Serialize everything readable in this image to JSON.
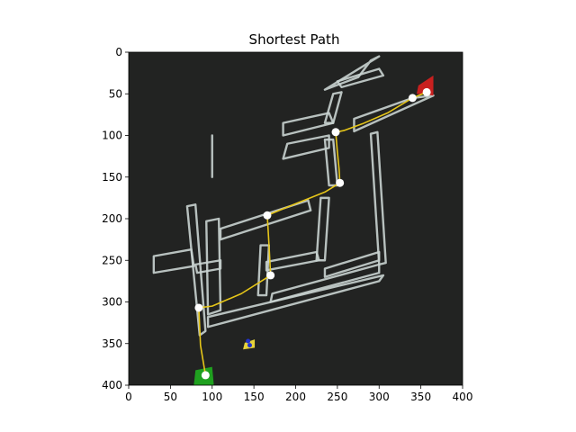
{
  "chart_data": {
    "type": "scatter",
    "title": "Shortest Path",
    "xlabel": "",
    "ylabel": "",
    "xlim": [
      0,
      400
    ],
    "ylim": [
      400,
      0
    ],
    "y_inverted": true,
    "grid": false,
    "x_ticks": [
      0,
      50,
      100,
      150,
      200,
      250,
      300,
      350,
      400
    ],
    "y_ticks": [
      0,
      50,
      100,
      150,
      200,
      250,
      300,
      350,
      400
    ],
    "background_color": "#222322",
    "corridor_color": "#c9d3d0",
    "path_color": "#e6c619",
    "waypoint_color": "#ffffff",
    "start_color": "#1fa01f",
    "goal_color": "#c8201f",
    "corridors": [
      [
        [
          85,
          340
        ],
        [
          70,
          185
        ],
        [
          80,
          183
        ],
        [
          92,
          335
        ]
      ],
      [
        [
          30,
          265
        ],
        [
          30,
          245
        ],
        [
          75,
          237
        ],
        [
          78,
          257
        ]
      ],
      [
        [
          80,
          255
        ],
        [
          110,
          250
        ],
        [
          110,
          260
        ],
        [
          82,
          265
        ]
      ],
      [
        [
          95,
          330
        ],
        [
          300,
          275
        ],
        [
          305,
          268
        ],
        [
          95,
          318
        ]
      ],
      [
        [
          95,
          315
        ],
        [
          110,
          310
        ],
        [
          108,
          200
        ],
        [
          93,
          203
        ]
      ],
      [
        [
          110,
          225
        ],
        [
          110,
          212
        ],
        [
          215,
          178
        ],
        [
          218,
          190
        ]
      ],
      [
        [
          155,
          292
        ],
        [
          158,
          232
        ],
        [
          168,
          232
        ],
        [
          165,
          292
        ]
      ],
      [
        [
          165,
          262
        ],
        [
          165,
          252
        ],
        [
          225,
          240
        ],
        [
          228,
          250
        ]
      ],
      [
        [
          225,
          250
        ],
        [
          230,
          175
        ],
        [
          240,
          175
        ],
        [
          235,
          250
        ]
      ],
      [
        [
          170,
          300
        ],
        [
          300,
          265
        ],
        [
          300,
          255
        ],
        [
          172,
          290
        ]
      ],
      [
        [
          235,
          270
        ],
        [
          300,
          250
        ],
        [
          300,
          240
        ],
        [
          235,
          260
        ]
      ],
      [
        [
          300,
          255
        ],
        [
          290,
          98
        ],
        [
          298,
          96
        ],
        [
          308,
          253
        ]
      ],
      [
        [
          185,
          100
        ],
        [
          185,
          85
        ],
        [
          240,
          73
        ],
        [
          245,
          85
        ]
      ],
      [
        [
          235,
          85
        ],
        [
          245,
          50
        ],
        [
          255,
          48
        ],
        [
          245,
          85
        ]
      ],
      [
        [
          185,
          128
        ],
        [
          190,
          110
        ],
        [
          240,
          100
        ],
        [
          240,
          115
        ]
      ],
      [
        [
          240,
          160
        ],
        [
          235,
          105
        ],
        [
          245,
          105
        ],
        [
          250,
          160
        ]
      ],
      [
        [
          250,
          35
        ],
        [
          300,
          20
        ],
        [
          305,
          28
        ],
        [
          255,
          42
        ]
      ],
      [
        [
          235,
          45
        ],
        [
          275,
          30
        ],
        [
          290,
          10
        ],
        [
          300,
          5
        ]
      ],
      [
        [
          270,
          95
        ],
        [
          270,
          80
        ],
        [
          340,
          55
        ],
        [
          365,
          52
        ]
      ],
      [
        [
          100,
          150
        ],
        [
          100,
          100
        ]
      ]
    ],
    "path": [
      [
        92,
        388
      ],
      [
        86,
        352
      ],
      [
        84,
        307
      ],
      [
        100,
        305
      ],
      [
        135,
        290
      ],
      [
        170,
        268
      ],
      [
        168,
        230
      ],
      [
        166,
        196
      ],
      [
        200,
        182
      ],
      [
        235,
        168
      ],
      [
        253,
        157
      ],
      [
        252,
        140
      ],
      [
        250,
        120
      ],
      [
        248,
        96
      ],
      [
        258,
        94
      ],
      [
        280,
        86
      ],
      [
        310,
        73
      ],
      [
        340,
        55
      ],
      [
        357,
        48
      ]
    ],
    "waypoints": [
      [
        92,
        388
      ],
      [
        84,
        307
      ],
      [
        170,
        268
      ],
      [
        166,
        196
      ],
      [
        253,
        157
      ],
      [
        248,
        96
      ],
      [
        340,
        55
      ],
      [
        357,
        48
      ]
    ],
    "start": [
      92,
      388
    ],
    "goal": [
      357,
      48
    ],
    "robot": [
      143,
      347
    ]
  }
}
